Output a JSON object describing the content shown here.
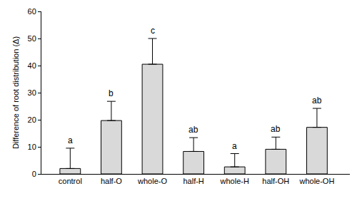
{
  "chart_data": {
    "type": "bar",
    "y_label": "Difference of root distribution (Δ)",
    "categories": [
      "control",
      "half-O",
      "whole-O",
      "half-H",
      "whole-H",
      "half-OH",
      "whole-OH"
    ],
    "values": [
      2.0,
      19.7,
      40.5,
      8.3,
      2.6,
      9.1,
      17.2
    ],
    "error": [
      7.5,
      7.1,
      9.5,
      5.1,
      4.9,
      4.5,
      7.0
    ],
    "annotations": [
      "a",
      "b",
      "c",
      "ab",
      "a",
      "ab",
      "ab"
    ],
    "color": "#d9d9d9",
    "ylim": [
      0,
      60
    ],
    "yticks": [
      0,
      10,
      20,
      30,
      40,
      50,
      60
    ],
    "grid": false
  }
}
